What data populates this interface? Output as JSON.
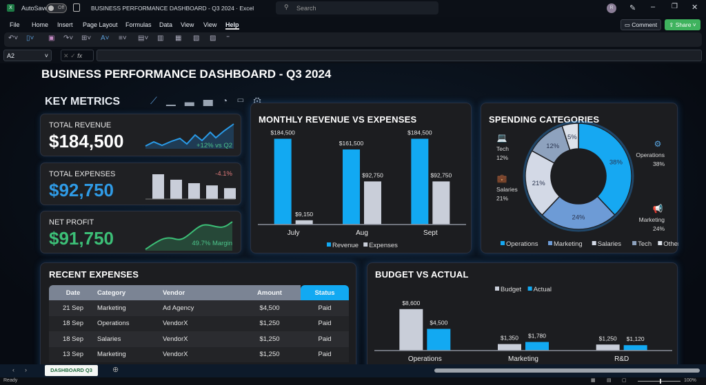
{
  "window": {
    "app_icon": "excel-icon",
    "autosave_label": "AutoSave",
    "autosave_state": "Off",
    "title": "BUSINESS PERFORMANCE DASHBOARD - Q3 2024 · Excel",
    "search_placeholder": "Search",
    "avatar": "R",
    "comment": "Comment",
    "share": "Share"
  },
  "menu": [
    "File",
    "Home",
    "Insert",
    "Page Layout",
    "Formulas",
    "Data",
    "View",
    "View",
    "Help"
  ],
  "active_menu": "Help",
  "formula": {
    "name_box": "A2",
    "fx": "fx",
    "value": ""
  },
  "dashboard": {
    "title": "BUSINESS PERFORMANCE DASHBOARD - Q3 2024",
    "key_metrics_title": "KEY METRICS",
    "metric_icons": [
      "line-chart-icon",
      "bar-chart-icon",
      "pie-chart-icon",
      "briefcase-icon",
      "gear-icon"
    ]
  },
  "metrics": [
    {
      "label": "TOTAL REVENUE",
      "value": "$184,500",
      "note": "+12% vs Q2",
      "note_color": "#4cc38a",
      "value_color": "#ffffff"
    },
    {
      "label": "TOTAL EXPENSES",
      "value": "$92,750",
      "note": "-4.1%",
      "note_color": "#e07a7a",
      "value_color": "#2f9be6",
      "bars": [
        100,
        78,
        64,
        55,
        44
      ]
    },
    {
      "label": "NET PROFIT",
      "value": "$91,750",
      "note": "49.7% Margin",
      "note_color": "#4cc38a",
      "value_color": "#3cbf77"
    }
  ],
  "chart_data": [
    {
      "type": "bar",
      "title": "MONTHLY REVENUE VS EXPENSES",
      "categories": [
        "July",
        "Aug",
        "Sept"
      ],
      "series": [
        {
          "name": "Revenue",
          "values": [
            184500,
            161500,
            184500
          ],
          "labels": [
            "$184,500",
            "$161,500",
            "$184,500"
          ],
          "color": "#12a9f2"
        },
        {
          "name": "Expenses",
          "values": [
            9150,
            92750,
            92750
          ],
          "labels": [
            "$9,150",
            "$92,750",
            "$92,750"
          ],
          "color": "#c9ced9"
        }
      ],
      "legend": "bottom"
    },
    {
      "type": "pie",
      "title": "SPENDING CATEGORIES",
      "donut": true,
      "slices": [
        {
          "name": "Operations",
          "value": 38,
          "label": "38%",
          "color": "#16a8f2",
          "icon": "gear-icon"
        },
        {
          "name": "Marketing",
          "value": 24,
          "label": "24%",
          "color": "#6d9bd6",
          "icon": "megaphone-icon"
        },
        {
          "name": "Salaries",
          "value": 21,
          "label": "21%",
          "color": "#d3d9e6",
          "icon": "briefcase-icon"
        },
        {
          "name": "Tech",
          "value": 12,
          "label": "12%",
          "color": "#8ea2be",
          "icon": "devices-icon"
        },
        {
          "name": "Other",
          "value": 5,
          "label": "5%",
          "color": "#dde2ea"
        }
      ],
      "legend": "bottom"
    },
    {
      "type": "bar",
      "title": "BUDGET VS ACTUAL",
      "categories": [
        "Operations",
        "Marketing",
        "R&D"
      ],
      "series": [
        {
          "name": "Budget",
          "values": [
            8600,
            1350,
            1250
          ],
          "labels": [
            "$8,600",
            "$1,350",
            "$1,250"
          ],
          "color": "#c9ced9"
        },
        {
          "name": "Actual",
          "values": [
            4500,
            1780,
            1120
          ],
          "labels": [
            "$4,500",
            "$1,780",
            "$1,120"
          ],
          "color": "#12a9f2"
        }
      ],
      "legend": "top"
    }
  ],
  "expenses": {
    "title": "RECENT EXPENSES",
    "columns": [
      "Date",
      "Category",
      "Vendor",
      "Amount",
      "Status"
    ],
    "rows": [
      [
        "21 Sep",
        "Marketing",
        "Ad Agency",
        "$4,500",
        "Paid"
      ],
      [
        "18 Sep",
        "Operations",
        "VendorX",
        "$1,250",
        "Paid"
      ],
      [
        "18 Sep",
        "Salaries",
        "VendorX",
        "$1,250",
        "Paid"
      ],
      [
        "13 Sep",
        "Marketing",
        "VendorX",
        "$1,250",
        "Paid"
      ]
    ]
  },
  "sheet_tab": "DASHBOARD Q3",
  "status": {
    "ready": "Ready",
    "zoom": "100%"
  }
}
